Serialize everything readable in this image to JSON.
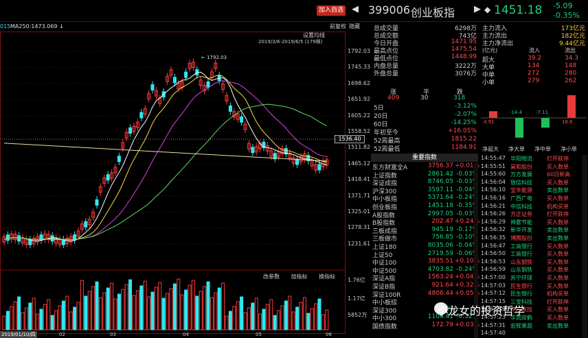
{
  "header": {
    "add_watch": "加入自选",
    "code": "399006",
    "name": "创业板指",
    "price": "1451.18",
    "change_abs": "-5.09",
    "change_pct": "-0.35%",
    "prev_arrow": "◀",
    "next_arrow": "▶",
    "updown_icon": "◆"
  },
  "chart": {
    "ma_prefix": "015",
    "ma250_label": "MA250:1473.069",
    "ma250_arrow": "↓",
    "restore_btn": "前复权",
    "hide_btn": "隐藏",
    "setup_btn": "设置均线",
    "range_label": "2019/3/6-2019/6/5 (179根)",
    "peak_label": "1792.03",
    "last_label": "1536.40",
    "price_ticks": [
      "1792.03",
      "1745.33",
      "1698.62",
      "1651.92",
      "1605.22",
      "1558.52",
      "1511.82",
      "1465.12",
      "1418.41",
      "1371.71",
      "1325.01",
      "1278.31",
      "1231.61"
    ],
    "vol_ticks": [
      "1.76亿",
      "1.17亿",
      "5852万"
    ],
    "vol_buttons": [
      "改参数",
      "加指标",
      "换指标"
    ],
    "x_ticks": [
      "02",
      "03",
      "04",
      "05",
      "06"
    ],
    "date_box": "2019/01/10/四",
    "colors": {
      "up": "#ff3b3b",
      "down": "#2ee8f0",
      "ma5": "#ffffff",
      "ma10": "#f2e040",
      "ma20": "#e040e0",
      "ma60": "#60e060",
      "ma250": "#f0e0a0"
    }
  },
  "info": {
    "rows": [
      {
        "label": "总成交量",
        "value": "6298万"
      },
      {
        "label": "总成交额",
        "value": "743亿"
      },
      {
        "label": "今日开盘",
        "value": "1471.95"
      },
      {
        "label": "最高点位",
        "value": "1475.54"
      },
      {
        "label": "最低点位",
        "value": "1448.99"
      },
      {
        "label": "内盘总量",
        "value": "3222万"
      },
      {
        "label": "外盘总量",
        "value": "3076万"
      }
    ]
  },
  "flow": {
    "rows": [
      {
        "label": "主力流入",
        "value": "173亿元"
      },
      {
        "label": "主力流出",
        "value": "182亿元"
      },
      {
        "label": "主力净流出",
        "value": "9.44亿元"
      }
    ],
    "head_unit": "(亿元)",
    "head_in": "流入",
    "head_out": "流出",
    "table": [
      {
        "label": "超大",
        "in": "39.2",
        "out": "34.3"
      },
      {
        "label": "大单",
        "in": "134",
        "out": "148"
      },
      {
        "label": "中单",
        "in": "272",
        "out": "280"
      },
      {
        "label": "小单",
        "in": "279",
        "out": "262"
      }
    ],
    "net_bars": [
      4.91,
      -14.4,
      -7.11,
      16.6
    ],
    "net_labels": [
      "4.91",
      "-14.4",
      "-7.11",
      "16.6"
    ],
    "net_cats": [
      "净超大",
      "净大单",
      "净中单",
      "净小单"
    ]
  },
  "distribution": {
    "up_label": "涨",
    "flat_label": "平",
    "down_label": "跌",
    "up": "409",
    "flat": "30",
    "down": "318"
  },
  "performance": [
    {
      "label": "5日",
      "value": "-3.12%",
      "dir": "down"
    },
    {
      "label": "20日",
      "value": "-2.07%",
      "dir": "down"
    },
    {
      "label": "60日",
      "value": "-14.25%",
      "dir": "down"
    },
    {
      "label": "年初至今",
      "value": "+16.05%",
      "dir": "up"
    },
    {
      "label": "52周最高",
      "value": "1815.22",
      "dir": "flat"
    },
    {
      "label": "52周最低",
      "value": "1184.91",
      "dir": "flat"
    }
  ],
  "indices": {
    "title": "重要指数",
    "rows": [
      {
        "name": "东方财富全A",
        "price": "3756.37",
        "chg": "+0.01%",
        "dir": "up"
      },
      {
        "name": "上证指数",
        "price": "2861.42",
        "chg": "-0.03%",
        "dir": "down"
      },
      {
        "name": "深证成指",
        "price": "8746.05",
        "chg": "-0.03%",
        "dir": "down"
      },
      {
        "name": "沪深300",
        "price": "3597.11",
        "chg": "-0.04%",
        "dir": "down"
      },
      {
        "name": "中小板指",
        "price": "5371.64",
        "chg": "-0.24%",
        "dir": "down"
      },
      {
        "name": "创业板指",
        "price": "1451.18",
        "chg": "-0.35%",
        "dir": "down"
      },
      {
        "name": "A股指数",
        "price": "2997.05",
        "chg": "-0.03%",
        "dir": "down"
      },
      {
        "name": "B股指数",
        "price": "202.47",
        "chg": "+0.24%",
        "dir": "up"
      },
      {
        "name": "三板成指",
        "price": "945.19",
        "chg": "-0.17%",
        "dir": "down"
      },
      {
        "name": "三板做市",
        "price": "756.85",
        "chg": "-0.10%",
        "dir": "down"
      },
      {
        "name": "上证180",
        "price": "8035.06",
        "chg": "-0.04%",
        "dir": "down"
      },
      {
        "name": "上证50",
        "price": "2719.59",
        "chg": "-0.06%",
        "dir": "down"
      },
      {
        "name": "中证100",
        "price": "3835.51",
        "chg": "+0.10%",
        "dir": "up"
      },
      {
        "name": "中证500",
        "price": "4703.82",
        "chg": "-0.24%",
        "dir": "down"
      },
      {
        "name": "深证A指",
        "price": "1563.24",
        "chg": "+0.04%",
        "dir": "up"
      },
      {
        "name": "深证B指",
        "price": "921.64",
        "chg": "+0.32%",
        "dir": "up"
      },
      {
        "name": "深证100R",
        "price": "4806.44",
        "chg": "+0.05%",
        "dir": "up"
      },
      {
        "name": "中小板综",
        "price": "",
        "chg": "",
        "dir": "down"
      },
      {
        "name": "深证300",
        "price": "3707",
        "chg": "",
        "dir": "down"
      },
      {
        "name": "中小300",
        "price": "1104.41",
        "chg": "-0.32%",
        "dir": "down"
      },
      {
        "name": "国债指数",
        "price": "172.79",
        "chg": "+0.03%",
        "dir": "up"
      }
    ]
  },
  "trades": [
    {
      "time": "14:55:47",
      "stock": "华阳物流",
      "action": "打开跌停"
    },
    {
      "time": "14:55:51",
      "stock": "昊和股份",
      "action": "买入数单"
    },
    {
      "time": "14:55:60",
      "stock": "万方发展",
      "action": "60日新高"
    },
    {
      "time": "14:56:04",
      "stock": "银信科技",
      "action": "买入数单"
    },
    {
      "time": "14:56:10",
      "stock": "宝丰能源",
      "action": "卖出数单"
    },
    {
      "time": "14:56:16",
      "stock": "广西广电",
      "action": "买入数单"
    },
    {
      "time": "14:56:21",
      "stock": "中信科技",
      "action": "机构买单"
    },
    {
      "time": "14:56:26",
      "stock": "方正证券",
      "action": "打开跌停"
    },
    {
      "time": "14:56:29",
      "stock": "神雾节能",
      "action": "买入数单"
    },
    {
      "time": "14:56:32",
      "stock": "新华开发",
      "action": "卖出数单"
    },
    {
      "time": "14:56:35",
      "stock": "博腾股份",
      "action": "卖出数单"
    },
    {
      "time": "14:56:47",
      "stock": "工商银行",
      "action": "买入数单"
    },
    {
      "time": "14:56:50",
      "stock": "工商银行",
      "action": "买入数单"
    },
    {
      "time": "14:56:53",
      "stock": "山东钢铁",
      "action": "买入数单"
    },
    {
      "time": "14:56:59",
      "stock": "山东钢铁",
      "action": "买入数单"
    },
    {
      "time": "14:57:00",
      "stock": "苏宁环球",
      "action": "买入数单"
    },
    {
      "time": "14:57:03",
      "stock": "民生银行",
      "action": "买入数单"
    },
    {
      "time": "14:57:12",
      "stock": "民生银行",
      "action": "机构买单"
    },
    {
      "time": "14:57:15",
      "stock": "三变科技",
      "action": "打开跌停"
    },
    {
      "time": "14:57:19",
      "stock": "中广核技",
      "action": "买入数单"
    },
    {
      "time": "14:57:23",
      "stock": "华润双鹤",
      "action": "买入数单"
    },
    {
      "time": "14:57:31",
      "stock": "宏辉果蔬",
      "action": "卖出数单"
    },
    {
      "time": "14:57:40",
      "stock": "",
      "action": ""
    }
  ],
  "watermark": "小龙女的投资哲学"
}
